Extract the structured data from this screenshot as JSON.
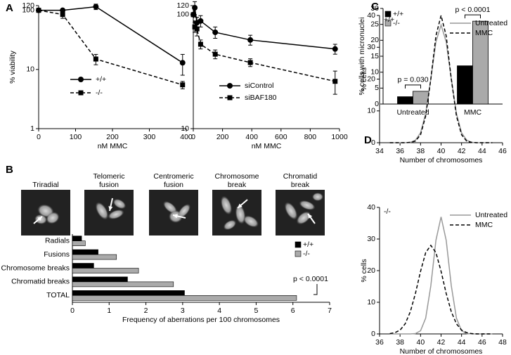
{
  "panel_labels": [
    "A",
    "B",
    "C",
    "D"
  ],
  "micrographs": [
    {
      "label": [
        "Triradial"
      ]
    },
    {
      "label": [
        "Telomeric",
        "fusion"
      ]
    },
    {
      "label": [
        "Centromeric",
        "fusion"
      ]
    },
    {
      "label": [
        "Chromosome",
        "break"
      ]
    },
    {
      "label": [
        "Chromatid",
        "break"
      ]
    }
  ],
  "chart_data": [
    {
      "type": "line",
      "xlabel": "nM MMC",
      "ylabel": "% viability",
      "yscale": "log",
      "x": [
        0,
        65,
        155,
        390
      ],
      "xlim": [
        0,
        400
      ],
      "xticks": [
        0,
        100,
        200,
        300,
        400
      ],
      "ylim": [
        1,
        120
      ],
      "yticks": [
        1,
        10,
        100,
        120
      ],
      "series": [
        {
          "name": "+/+",
          "color": "#000000",
          "dash": "solid",
          "marker": "circle",
          "values": [
            100,
            100,
            115,
            13
          ],
          "errors": [
            0,
            6,
            12,
            5
          ]
        },
        {
          "name": "-/-",
          "color": "#000000",
          "dash": "dashed",
          "marker": "square",
          "values": [
            100,
            85,
            15,
            5.5
          ],
          "errors": [
            0,
            12,
            3,
            0.8
          ]
        }
      ]
    },
    {
      "type": "line",
      "xlabel": "nM MMC",
      "yscale": "log",
      "x": [
        0,
        10,
        25,
        50,
        150,
        390,
        970
      ],
      "xlim": [
        0,
        1000
      ],
      "xticks": [
        0,
        200,
        400,
        600,
        800,
        1000
      ],
      "ylim": [
        10,
        120
      ],
      "yticks": [
        10,
        100,
        120
      ],
      "series": [
        {
          "name": "siControl",
          "color": "#000000",
          "dash": "solid",
          "marker": "circle",
          "values": [
            100,
            115,
            85,
            88,
            70,
            60,
            50
          ],
          "errors": [
            0,
            15,
            10,
            10,
            8,
            6,
            5
          ]
        },
        {
          "name": "siBAF180",
          "color": "#000000",
          "dash": "dashed",
          "marker": "square",
          "values": [
            100,
            78,
            75,
            55,
            45,
            38,
            26
          ],
          "errors": [
            0,
            8,
            10,
            5,
            4,
            3,
            6
          ]
        }
      ]
    },
    {
      "type": "barh",
      "xlabel": "Frequency of aberrations per 100 chromosomes",
      "categories": [
        "Radials",
        "Fusions",
        "Chromosome breaks",
        "Chromatid breaks",
        "TOTAL"
      ],
      "xlim": [
        0,
        7
      ],
      "xticks": [
        0,
        1,
        2,
        3,
        4,
        5,
        6,
        7
      ],
      "series": [
        {
          "name": "+/+",
          "color": "#000000",
          "values": [
            0.25,
            0.7,
            0.58,
            1.5,
            3.05
          ]
        },
        {
          "name": "-/-",
          "color": "#aaaaaa",
          "values": [
            0.35,
            1.2,
            1.8,
            2.75,
            6.1
          ]
        }
      ],
      "annotations": [
        "p < 0.0001"
      ]
    },
    {
      "type": "bar",
      "ylabel": "% cells with micronuclei",
      "categories": [
        "Untreated",
        "MMC"
      ],
      "ylim": [
        0,
        30
      ],
      "yticks": [
        0,
        5,
        10,
        15,
        20,
        25,
        30
      ],
      "series": [
        {
          "name": "+/+",
          "color": "#000000",
          "values": [
            2.3,
            12
          ]
        },
        {
          "name": "-/-",
          "color": "#aaaaaa",
          "values": [
            4,
            26
          ]
        }
      ],
      "annotations": [
        "p = 0.030",
        "p < 0.0001"
      ]
    },
    {
      "type": "line",
      "title": "+/+",
      "xlabel": "Number of chromosomes",
      "ylabel": "% cells",
      "x": [
        35,
        35.5,
        36,
        36.5,
        37,
        37.5,
        38,
        38.5,
        39,
        39.5,
        40,
        40.5,
        41,
        41.5,
        42,
        42.5,
        43,
        43.5,
        44,
        44.5,
        45
      ],
      "xlim": [
        34,
        46
      ],
      "xticks": [
        34,
        36,
        38,
        40,
        42,
        44,
        46
      ],
      "ylim": [
        0,
        40
      ],
      "yticks": [
        0,
        10,
        20,
        30,
        40
      ],
      "series": [
        {
          "name": "Untreated",
          "color": "#999999",
          "dash": "solid",
          "values": [
            0,
            0,
            0,
            0,
            0.1,
            0.8,
            3.1,
            9.2,
            20,
            31.7,
            37,
            31.7,
            20,
            9.2,
            3.1,
            0.8,
            0.1,
            0,
            0,
            0,
            0
          ]
        },
        {
          "name": "MMC",
          "color": "#000000",
          "dash": "dashed",
          "values": [
            0,
            0,
            0,
            0,
            0.1,
            0.5,
            2.5,
            8.4,
            20,
            33.6,
            40,
            33.6,
            20,
            8.4,
            2.5,
            0.5,
            0.1,
            0,
            0,
            0,
            0
          ]
        }
      ]
    },
    {
      "type": "line",
      "title": "-/-",
      "xlabel": "Number of chromosomes",
      "ylabel": "% cells",
      "x": [
        37,
        37.5,
        38,
        38.5,
        39,
        39.5,
        40,
        40.5,
        41,
        41.5,
        42,
        42.5,
        43,
        43.5,
        44,
        44.5,
        45,
        45.5,
        46,
        46.5,
        47
      ],
      "xlim": [
        36,
        48
      ],
      "xticks": [
        36,
        38,
        40,
        42,
        44,
        46,
        48
      ],
      "ylim": [
        0,
        40
      ],
      "yticks": [
        0,
        10,
        20,
        30,
        40
      ],
      "series": [
        {
          "name": "Untreated",
          "color": "#999999",
          "dash": "solid",
          "values": [
            0,
            0,
            0,
            0,
            0,
            0.1,
            1,
            5,
            15.2,
            29.6,
            37,
            29.6,
            15.2,
            5,
            1,
            0.1,
            0,
            0,
            0,
            0,
            0
          ]
        },
        {
          "name": "MMC",
          "color": "#000000",
          "dash": "dashed",
          "values": [
            0.1,
            0.4,
            1.2,
            3.2,
            7,
            12.8,
            19.8,
            25.7,
            28,
            25.7,
            19.8,
            12.8,
            7,
            3.2,
            1.2,
            0.4,
            0.1,
            0,
            0,
            0,
            0
          ]
        }
      ]
    }
  ]
}
